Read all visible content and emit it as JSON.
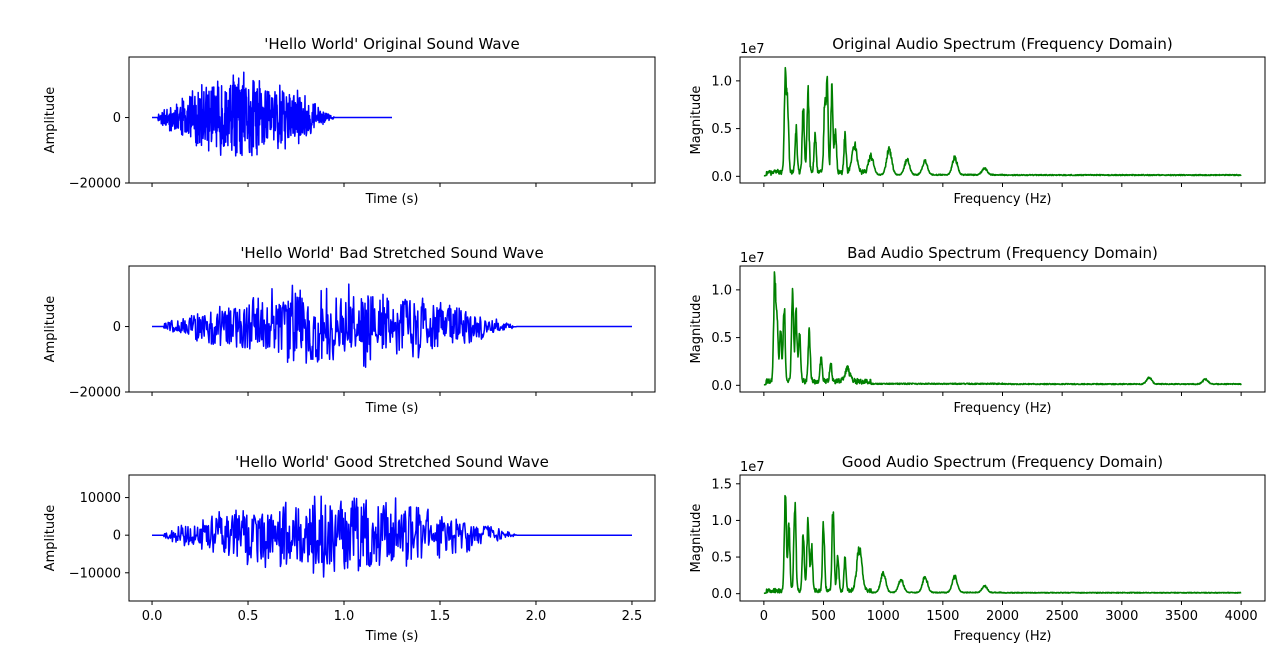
{
  "chart_data": [
    {
      "id": "orig-wave",
      "type": "line",
      "title": "'Hello World' Original Sound Wave",
      "xlabel": "Time (s)",
      "ylabel": "Amplitude",
      "xlim": [
        -0.12,
        2.62
      ],
      "ylim": [
        -20000,
        18500
      ],
      "xticks": [
        0,
        0.5,
        1.0,
        1.5,
        2.0,
        2.5
      ],
      "xtick_labels": [],
      "yticks": [
        0,
        -20000
      ],
      "ytick_labels": [
        "0",
        "−20000"
      ],
      "color": "#0000ff",
      "signal": {
        "duration": 1.25,
        "active": [
          0.0,
          1.0
        ],
        "peak": 17000,
        "min": -19000,
        "seed": 11
      }
    },
    {
      "id": "orig-spec",
      "type": "line",
      "title": "Original Audio Spectrum (Frequency Domain)",
      "xlabel": "Frequency (Hz)",
      "ylabel": "Magnitude",
      "offset_text": "1e7",
      "xlim": [
        -200,
        4200
      ],
      "ylim": [
        -0.07,
        1.25
      ],
      "xticks": [
        0,
        500,
        1000,
        1500,
        2000,
        2500,
        3000,
        3500,
        4000
      ],
      "xtick_labels": [],
      "yticks": [
        0.0,
        0.5,
        1.0
      ],
      "ytick_labels": [
        "0.0",
        "0.5",
        "1.0"
      ],
      "color": "#008000",
      "peaks": [
        [
          180,
          1.17
        ],
        [
          200,
          0.75
        ],
        [
          270,
          0.55
        ],
        [
          330,
          0.78
        ],
        [
          370,
          0.97
        ],
        [
          430,
          0.45
        ],
        [
          510,
          0.75
        ],
        [
          530,
          1.02
        ],
        [
          570,
          0.98
        ],
        [
          600,
          0.5
        ],
        [
          680,
          0.45
        ],
        [
          760,
          0.32
        ],
        [
          900,
          0.2
        ],
        [
          1050,
          0.3
        ],
        [
          1200,
          0.18
        ],
        [
          1350,
          0.16
        ],
        [
          1600,
          0.2
        ],
        [
          1850,
          0.08
        ]
      ],
      "seed": 21
    },
    {
      "id": "bad-wave",
      "type": "line",
      "title": "'Hello World' Bad Stretched Sound Wave",
      "xlabel": "Time (s)",
      "ylabel": "Amplitude",
      "xlim": [
        -0.12,
        2.62
      ],
      "ylim": [
        -20000,
        18500
      ],
      "xticks": [
        0,
        0.5,
        1.0,
        1.5,
        2.0,
        2.5
      ],
      "xtick_labels": [],
      "yticks": [
        0,
        -20000
      ],
      "ytick_labels": [
        "0",
        "−20000"
      ],
      "color": "#0000ff",
      "signal": {
        "duration": 2.5,
        "active": [
          0.0,
          2.0
        ],
        "peak": 17000,
        "min": -19000,
        "seed": 33
      }
    },
    {
      "id": "bad-spec",
      "type": "line",
      "title": "Bad Audio Spectrum (Frequency Domain)",
      "xlabel": "Frequency (Hz)",
      "ylabel": "Magnitude",
      "offset_text": "1e7",
      "xlim": [
        -200,
        4200
      ],
      "ylim": [
        -0.07,
        1.25
      ],
      "xticks": [
        0,
        500,
        1000,
        1500,
        2000,
        2500,
        3000,
        3500,
        4000
      ],
      "xtick_labels": [],
      "yticks": [
        0.0,
        0.5,
        1.0
      ],
      "ytick_labels": [
        "0.0",
        "0.5",
        "1.0"
      ],
      "color": "#008000",
      "peaks": [
        [
          90,
          1.17
        ],
        [
          110,
          0.75
        ],
        [
          140,
          0.6
        ],
        [
          170,
          0.85
        ],
        [
          240,
          1.03
        ],
        [
          270,
          0.8
        ],
        [
          300,
          0.55
        ],
        [
          380,
          0.57
        ],
        [
          480,
          0.3
        ],
        [
          560,
          0.22
        ],
        [
          700,
          0.15
        ],
        [
          3230,
          0.08
        ],
        [
          3700,
          0.06
        ]
      ],
      "seed": 43
    },
    {
      "id": "good-wave",
      "type": "line",
      "title": "'Hello World' Good Stretched Sound Wave",
      "xlabel": "Time (s)",
      "ylabel": "Amplitude",
      "xlim": [
        -0.12,
        2.62
      ],
      "ylim": [
        -17500,
        16000
      ],
      "xticks": [
        0,
        0.5,
        1.0,
        1.5,
        2.0,
        2.5
      ],
      "xtick_labels": [
        "0.0",
        "0.5",
        "1.0",
        "1.5",
        "2.0",
        "2.5"
      ],
      "yticks": [
        10000,
        0,
        -10000
      ],
      "ytick_labels": [
        "10000",
        "0",
        "−10000"
      ],
      "color": "#0000ff",
      "signal": {
        "duration": 2.5,
        "active": [
          0.0,
          2.0
        ],
        "peak": 14000,
        "min": -17000,
        "seed": 55
      }
    },
    {
      "id": "good-spec",
      "type": "line",
      "title": "Good Audio Spectrum (Frequency Domain)",
      "xlabel": "Frequency (Hz)",
      "ylabel": "Magnitude",
      "offset_text": "1e7",
      "xlim": [
        -200,
        4200
      ],
      "ylim": [
        -0.1,
        1.62
      ],
      "xticks": [
        0,
        500,
        1000,
        1500,
        2000,
        2500,
        3000,
        3500,
        4000
      ],
      "xtick_labels": [
        "0",
        "500",
        "1000",
        "1500",
        "2000",
        "2500",
        "3000",
        "3500",
        "4000"
      ],
      "yticks": [
        0.0,
        0.5,
        1.0,
        1.5
      ],
      "ytick_labels": [
        "0.0",
        "0.5",
        "1.0",
        "1.5"
      ],
      "color": "#008000",
      "peaks": [
        [
          180,
          1.55
        ],
        [
          210,
          1.0
        ],
        [
          260,
          1.45
        ],
        [
          330,
          0.9
        ],
        [
          370,
          1.2
        ],
        [
          400,
          0.7
        ],
        [
          500,
          1.05
        ],
        [
          580,
          1.3
        ],
        [
          620,
          0.55
        ],
        [
          680,
          0.5
        ],
        [
          800,
          0.65
        ],
        [
          1000,
          0.3
        ],
        [
          1150,
          0.2
        ],
        [
          1350,
          0.25
        ],
        [
          1600,
          0.25
        ],
        [
          1850,
          0.1
        ]
      ],
      "seed": 67
    }
  ]
}
